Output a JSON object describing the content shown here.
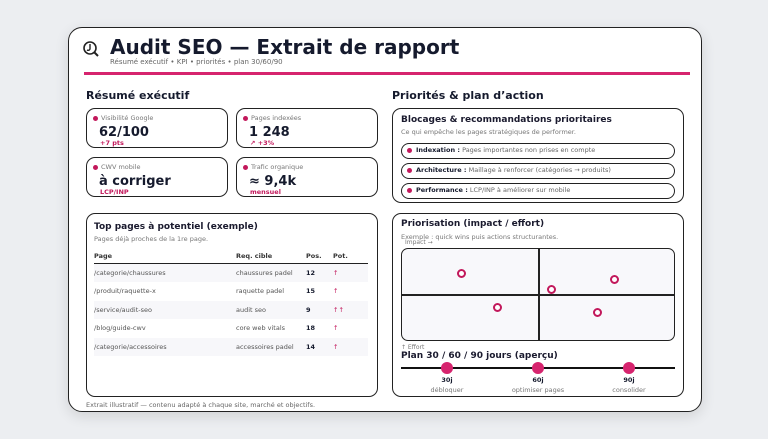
{
  "header": {
    "title": "Audit SEO — Extrait de rapport",
    "subtitle": "Résumé exécutif • KPI • priorités • plan 30/60/90",
    "logo_icon": "magnifier-logo-icon"
  },
  "accent": "#d6246e",
  "summary": {
    "heading": "Résumé exécutif",
    "kpis": [
      {
        "label": "Visibilité Google",
        "value": "62/100",
        "sub": "+7 pts"
      },
      {
        "label": "Pages indexées",
        "value": "1 248",
        "sub": "↗ +3%"
      },
      {
        "label": "CWV mobile",
        "value": "à corriger",
        "sub": "LCP/INP"
      },
      {
        "label": "Trafic organique",
        "value": "≈ 9,4k",
        "sub": "mensuel"
      }
    ]
  },
  "top_pages": {
    "title": "Top pages à potentiel (exemple)",
    "subtitle": "Pages déjà proches de la 1re page.",
    "columns": [
      "Page",
      "Req. cible",
      "Pos.",
      "Pot."
    ],
    "rows": [
      [
        "/categorie/chaussures",
        "chaussures padel",
        "12",
        "↑"
      ],
      [
        "/produit/raquette-x",
        "raquette padel",
        "15",
        "↑"
      ],
      [
        "/service/audit-seo",
        "audit seo",
        "9",
        "↑↑"
      ],
      [
        "/blog/guide-cwv",
        "core web vitals",
        "18",
        "↑"
      ],
      [
        "/categorie/accessoires",
        "accessoires padel",
        "14",
        "↑"
      ]
    ]
  },
  "priorities": {
    "heading": "Priorités & plan d’action",
    "blockers": {
      "title": "Blocages & recommandations prioritaires",
      "subtitle": "Ce qui empêche les pages stratégiques de performer.",
      "items": [
        {
          "label": "Indexation :",
          "text": "Pages importantes non prises en compte"
        },
        {
          "label": "Architecture :",
          "text": "Maillage à renforcer (catégories → produits)"
        },
        {
          "label": "Performance :",
          "text": "LCP/INP à améliorer sur mobile"
        }
      ]
    },
    "matrix": {
      "title": "Priorisation (impact / effort)",
      "subtitle": "Exemple : quick wins puis actions structurantes.",
      "x_label": "Impact →",
      "y_label": "↑ Effort"
    },
    "plan": {
      "title": "Plan 30 / 60 / 90 jours (aperçu)",
      "milestones": [
        {
          "label": "30j",
          "desc": "débloquer"
        },
        {
          "label": "60j",
          "desc": "optimiser pages"
        },
        {
          "label": "90j",
          "desc": "consolider"
        }
      ]
    }
  },
  "chart_data": {
    "type": "scatter",
    "xlabel": "Impact →",
    "ylabel": "↑ Effort",
    "xlim": [
      0,
      100
    ],
    "ylim": [
      0,
      100
    ],
    "quadrants": true,
    "grid": false,
    "points": [
      {
        "x": 22,
        "y": 73
      },
      {
        "x": 35,
        "y": 36
      },
      {
        "x": 55,
        "y": 55
      },
      {
        "x": 78,
        "y": 66
      },
      {
        "x": 72,
        "y": 30
      }
    ]
  },
  "footer": "Extrait illustratif — contenu adapté à chaque site, marché et objectifs."
}
